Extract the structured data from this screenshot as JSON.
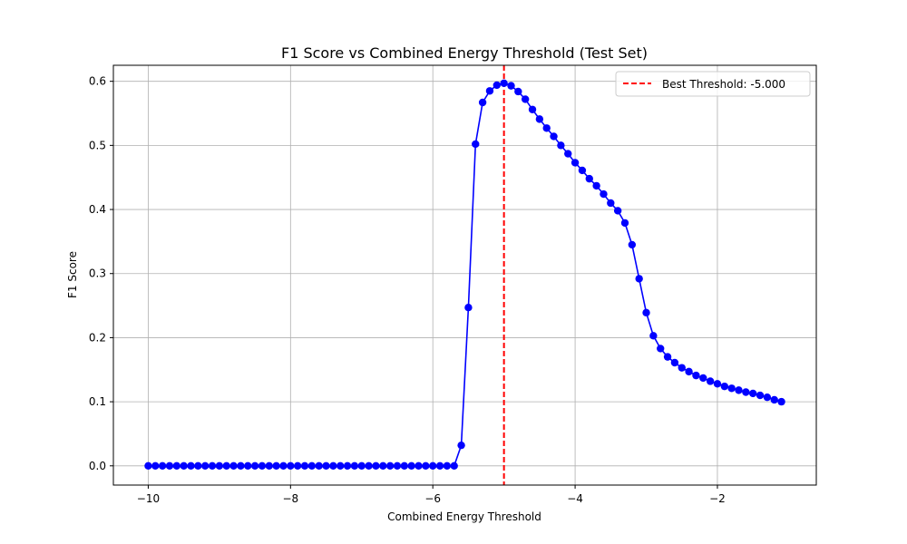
{
  "chart_data": {
    "type": "line",
    "title": "F1 Score vs Combined Energy Threshold (Test Set)",
    "xlabel": "Combined Energy Threshold",
    "ylabel": "F1 Score",
    "xlim": [
      -10.49,
      -0.61
    ],
    "ylim": [
      -0.03,
      0.625
    ],
    "xticks": [
      -10,
      -8,
      -6,
      -4,
      -2
    ],
    "xtick_labels": [
      "−10",
      "−8",
      "−6",
      "−4",
      "−2"
    ],
    "yticks": [
      0.0,
      0.1,
      0.2,
      0.3,
      0.4,
      0.5,
      0.6
    ],
    "ytick_labels": [
      "0.0",
      "0.1",
      "0.2",
      "0.3",
      "0.4",
      "0.5",
      "0.6"
    ],
    "grid": true,
    "legend_position": "top-right",
    "series": [
      {
        "color": "#0000ff",
        "marker": "circle",
        "x": [
          -10.0,
          -9.9,
          -9.8,
          -9.7,
          -9.6,
          -9.5,
          -9.4,
          -9.3,
          -9.2,
          -9.1,
          -9.0,
          -8.9,
          -8.8,
          -8.7,
          -8.6,
          -8.5,
          -8.4,
          -8.3,
          -8.2,
          -8.1,
          -8.0,
          -7.9,
          -7.8,
          -7.7,
          -7.6,
          -7.5,
          -7.4,
          -7.3,
          -7.2,
          -7.1,
          -7.0,
          -6.9,
          -6.8,
          -6.7,
          -6.6,
          -6.5,
          -6.4,
          -6.3,
          -6.2,
          -6.1,
          -6.0,
          -5.9,
          -5.8,
          -5.7,
          -5.6,
          -5.5,
          -5.4,
          -5.3,
          -5.2,
          -5.1,
          -5.0,
          -4.9,
          -4.8,
          -4.7,
          -4.6,
          -4.5,
          -4.4,
          -4.3,
          -4.2,
          -4.1,
          -4.0,
          -3.9,
          -3.8,
          -3.7,
          -3.6,
          -3.5,
          -3.4,
          -3.3,
          -3.2,
          -3.1,
          -3.0,
          -2.9,
          -2.8,
          -2.7,
          -2.6,
          -2.5,
          -2.4,
          -2.3,
          -2.2,
          -2.1,
          -2.0,
          -1.9,
          -1.8,
          -1.7,
          -1.6,
          -1.5,
          -1.4,
          -1.3,
          -1.2,
          -1.1
        ],
        "y": [
          0,
          0,
          0,
          0,
          0,
          0,
          0,
          0,
          0,
          0,
          0,
          0,
          0,
          0,
          0,
          0,
          0,
          0,
          0,
          0,
          0,
          0,
          0,
          0,
          0,
          0,
          0,
          0,
          0,
          0,
          0,
          0,
          0,
          0,
          0,
          0,
          0,
          0,
          0,
          0,
          0,
          0,
          0,
          0,
          0.032,
          0.247,
          0.502,
          0.567,
          0.585,
          0.594,
          0.597,
          0.593,
          0.584,
          0.572,
          0.556,
          0.541,
          0.527,
          0.514,
          0.5,
          0.487,
          0.473,
          0.461,
          0.448,
          0.437,
          0.424,
          0.41,
          0.398,
          0.379,
          0.345,
          0.292,
          0.239,
          0.203,
          0.183,
          0.17,
          0.161,
          0.153,
          0.147,
          0.141,
          0.137,
          0.132,
          0.128,
          0.124,
          0.121,
          0.118,
          0.115,
          0.113,
          0.11,
          0.107,
          0.103,
          0.1
        ]
      }
    ],
    "threshold_line": {
      "x": -5.0,
      "color": "#ff0000",
      "style": "dashed",
      "legend_label": "Best Threshold: -5.000"
    }
  }
}
